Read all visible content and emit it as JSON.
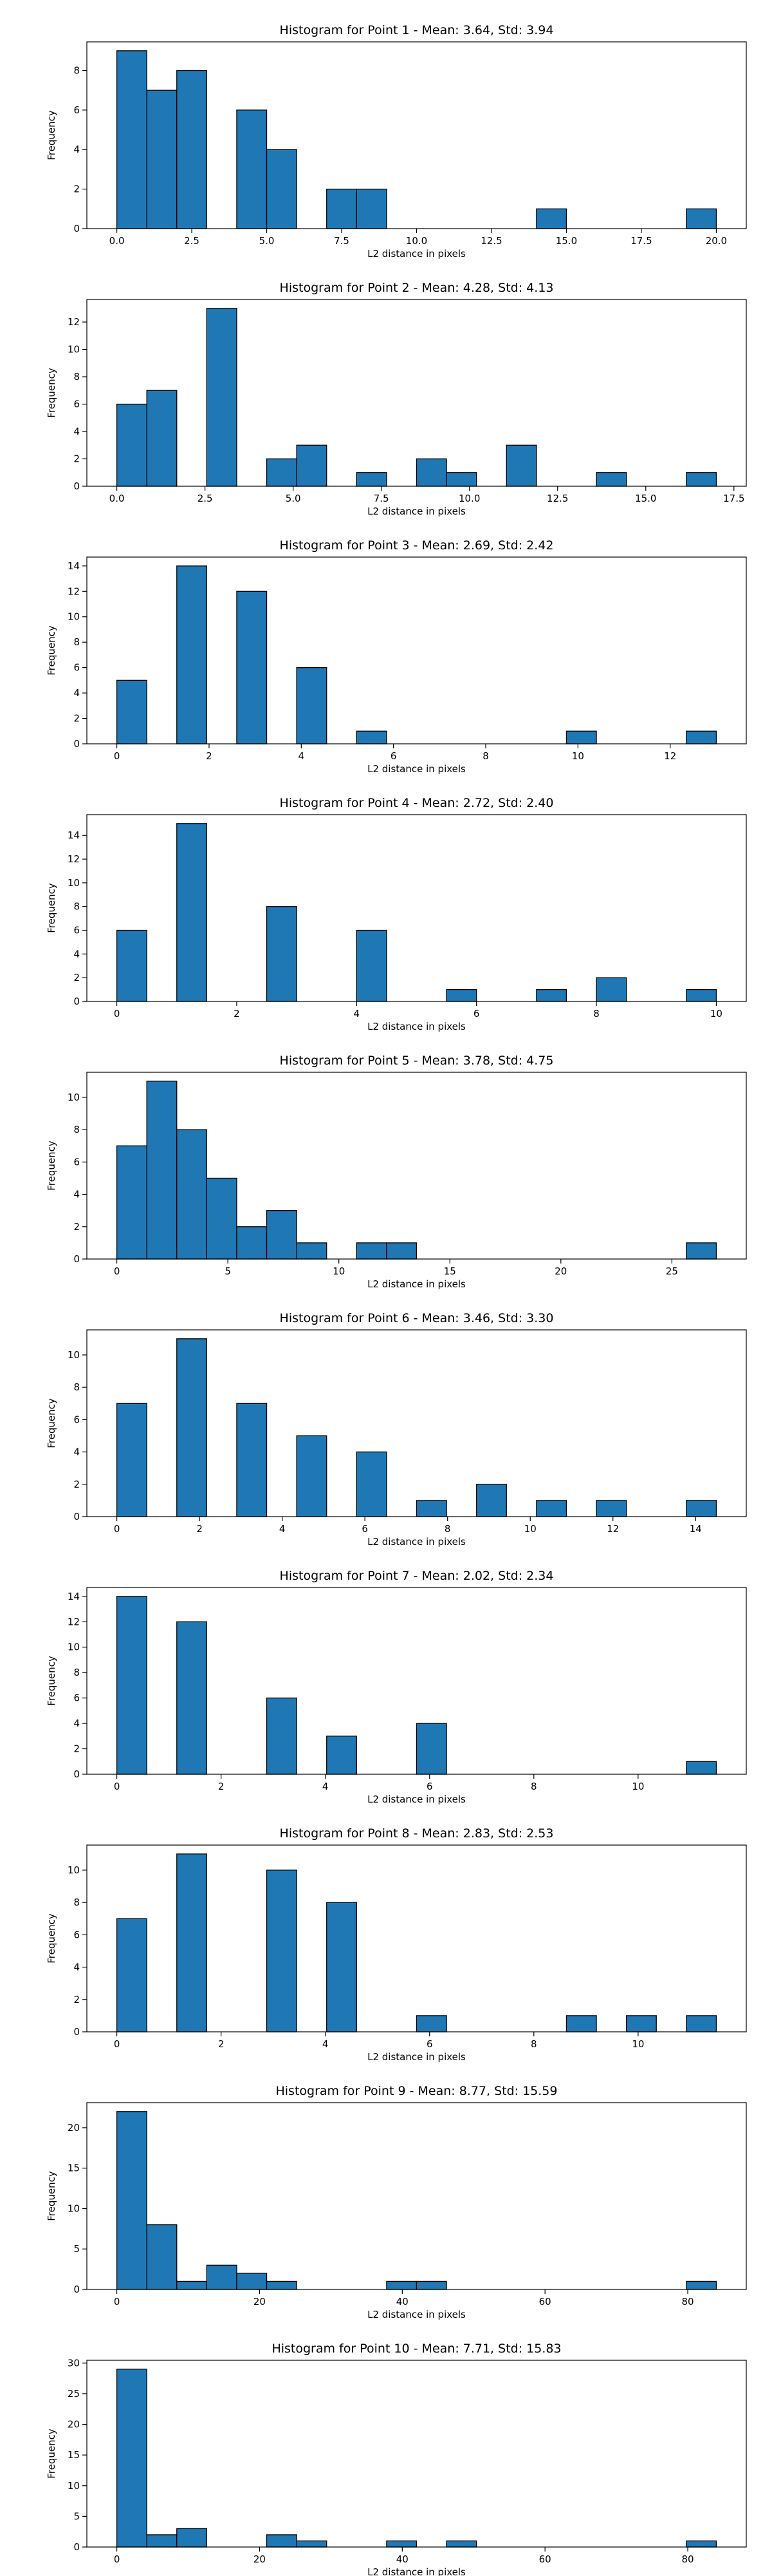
{
  "colors": {
    "bar": "#1f77b4",
    "edge": "#000000"
  },
  "chart_data": [
    {
      "type": "bar",
      "title": "Histogram for Point 1 - Mean: 3.64, Std: 3.94",
      "xlabel": "L2 distance in pixels",
      "ylabel": "Frequency",
      "xlim": [
        -1,
        21
      ],
      "ylim": [
        0,
        9.45
      ],
      "xticks": [
        0,
        2.5,
        5,
        7.5,
        10,
        12.5,
        15,
        17.5,
        20
      ],
      "xtick_labels": [
        "0.0",
        "2.5",
        "5.0",
        "7.5",
        "10.0",
        "12.5",
        "15.0",
        "17.5",
        "20.0"
      ],
      "yticks": [
        0,
        2,
        4,
        6,
        8
      ],
      "bins": [
        0,
        1,
        2,
        3,
        4,
        5,
        6,
        7,
        8,
        9,
        10,
        11,
        12,
        13,
        14,
        15,
        16,
        17,
        18,
        19,
        20
      ],
      "counts": [
        9,
        7,
        8,
        0,
        6,
        4,
        0,
        2,
        2,
        0,
        0,
        0,
        0,
        0,
        1,
        0,
        0,
        0,
        0,
        1
      ]
    },
    {
      "type": "bar",
      "title": "Histogram for Point 2 - Mean: 4.28, Std: 4.13",
      "xlabel": "L2 distance in pixels",
      "ylabel": "Frequency",
      "xlim": [
        -0.85,
        17.85
      ],
      "ylim": [
        0,
        13.65
      ],
      "xticks": [
        0,
        2.5,
        5,
        7.5,
        10,
        12.5,
        15,
        17.5
      ],
      "xtick_labels": [
        "0.0",
        "2.5",
        "5.0",
        "7.5",
        "10.0",
        "12.5",
        "15.0",
        "17.5"
      ],
      "yticks": [
        0,
        2,
        4,
        6,
        8,
        10,
        12
      ],
      "bins": [
        0,
        0.85,
        1.7,
        2.55,
        3.4,
        4.25,
        5.1,
        5.95,
        6.8,
        7.65,
        8.5,
        9.35,
        10.2,
        11.05,
        11.9,
        12.75,
        13.6,
        14.45,
        15.3,
        16.15,
        17
      ],
      "counts": [
        6,
        7,
        0,
        13,
        0,
        2,
        3,
        0,
        1,
        0,
        2,
        1,
        0,
        3,
        0,
        0,
        1,
        0,
        0,
        1
      ]
    },
    {
      "type": "bar",
      "title": "Histogram for Point 3 - Mean: 2.69, Std: 2.42",
      "xlabel": "L2 distance in pixels",
      "ylabel": "Frequency",
      "xlim": [
        -0.65,
        13.65
      ],
      "ylim": [
        0,
        14.7
      ],
      "xticks": [
        0,
        2,
        4,
        6,
        8,
        10,
        12
      ],
      "xtick_labels": [
        "0",
        "2",
        "4",
        "6",
        "8",
        "10",
        "12"
      ],
      "yticks": [
        0,
        2,
        4,
        6,
        8,
        10,
        12,
        14
      ],
      "bins": [
        0,
        0.65,
        1.3,
        1.95,
        2.6,
        3.25,
        3.9,
        4.55,
        5.2,
        5.85,
        6.5,
        7.15,
        7.8,
        8.45,
        9.1,
        9.75,
        10.4,
        11.05,
        11.7,
        12.35,
        13
      ],
      "counts": [
        5,
        0,
        14,
        0,
        12,
        0,
        6,
        0,
        1,
        0,
        0,
        0,
        0,
        0,
        0,
        1,
        0,
        0,
        0,
        1
      ]
    },
    {
      "type": "bar",
      "title": "Histogram for Point 4 - Mean: 2.72, Std: 2.40",
      "xlabel": "L2 distance in pixels",
      "ylabel": "Frequency",
      "xlim": [
        -0.5,
        10.5
      ],
      "ylim": [
        0,
        15.75
      ],
      "xticks": [
        0,
        2,
        4,
        6,
        8,
        10
      ],
      "xtick_labels": [
        "0",
        "2",
        "4",
        "6",
        "8",
        "10"
      ],
      "yticks": [
        0,
        2,
        4,
        6,
        8,
        10,
        12,
        14
      ],
      "bins": [
        0,
        0.5,
        1,
        1.5,
        2,
        2.5,
        3,
        3.5,
        4,
        4.5,
        5,
        5.5,
        6,
        6.5,
        7,
        7.5,
        8,
        8.5,
        9,
        9.5,
        10
      ],
      "counts": [
        6,
        0,
        15,
        0,
        0,
        8,
        0,
        0,
        6,
        0,
        0,
        1,
        0,
        0,
        1,
        0,
        2,
        0,
        0,
        1
      ]
    },
    {
      "type": "bar",
      "title": "Histogram for Point 5 - Mean: 3.78, Std: 4.75",
      "xlabel": "L2 distance in pixels",
      "ylabel": "Frequency",
      "xlim": [
        -1.35,
        28.35
      ],
      "ylim": [
        0,
        11.55
      ],
      "xticks": [
        0,
        5,
        10,
        15,
        20,
        25
      ],
      "xtick_labels": [
        "0",
        "5",
        "10",
        "15",
        "20",
        "25"
      ],
      "yticks": [
        0,
        2,
        4,
        6,
        8,
        10
      ],
      "bins": [
        0,
        1.35,
        2.7,
        4.05,
        5.4,
        6.75,
        8.1,
        9.45,
        10.8,
        12.15,
        13.5,
        14.85,
        16.2,
        17.55,
        18.9,
        20.25,
        21.6,
        22.95,
        24.3,
        25.65,
        27
      ],
      "counts": [
        7,
        11,
        8,
        5,
        2,
        3,
        1,
        0,
        1,
        1,
        0,
        0,
        0,
        0,
        0,
        0,
        0,
        0,
        0,
        1
      ]
    },
    {
      "type": "bar",
      "title": "Histogram for Point 6 - Mean: 3.46, Std: 3.30",
      "xlabel": "L2 distance in pixels",
      "ylabel": "Frequency",
      "xlim": [
        -0.725,
        15.225
      ],
      "ylim": [
        0,
        11.55
      ],
      "xticks": [
        0,
        2,
        4,
        6,
        8,
        10,
        12,
        14
      ],
      "xtick_labels": [
        "0",
        "2",
        "4",
        "6",
        "8",
        "10",
        "12",
        "14"
      ],
      "yticks": [
        0,
        2,
        4,
        6,
        8,
        10
      ],
      "bins": [
        0,
        0.725,
        1.45,
        2.175,
        2.9,
        3.625,
        4.35,
        5.075,
        5.8,
        6.525,
        7.25,
        7.975,
        8.7,
        9.425,
        10.15,
        10.875,
        11.6,
        12.325,
        13.05,
        13.775,
        14.5
      ],
      "counts": [
        7,
        0,
        11,
        0,
        7,
        0,
        5,
        0,
        4,
        0,
        1,
        0,
        2,
        0,
        1,
        0,
        1,
        0,
        0,
        1
      ]
    },
    {
      "type": "bar",
      "title": "Histogram for Point 7 - Mean: 2.02, Std: 2.34",
      "xlabel": "L2 distance in pixels",
      "ylabel": "Frequency",
      "xlim": [
        -0.575,
        12.075
      ],
      "ylim": [
        0,
        14.7
      ],
      "xticks": [
        0,
        2,
        4,
        6,
        8,
        10
      ],
      "xtick_labels": [
        "0",
        "2",
        "4",
        "6",
        "8",
        "10"
      ],
      "yticks": [
        0,
        2,
        4,
        6,
        8,
        10,
        12,
        14
      ],
      "bins": [
        0,
        0.575,
        1.15,
        1.725,
        2.3,
        2.875,
        3.45,
        4.025,
        4.6,
        5.175,
        5.75,
        6.325,
        6.9,
        7.475,
        8.05,
        8.625,
        9.2,
        9.775,
        10.35,
        10.925,
        11.5
      ],
      "counts": [
        14,
        0,
        12,
        0,
        0,
        6,
        0,
        3,
        0,
        0,
        4,
        0,
        0,
        0,
        0,
        0,
        0,
        0,
        0,
        1
      ]
    },
    {
      "type": "bar",
      "title": "Histogram for Point 8 - Mean: 2.83, Std: 2.53",
      "xlabel": "L2 distance in pixels",
      "ylabel": "Frequency",
      "xlim": [
        -0.575,
        12.075
      ],
      "ylim": [
        0,
        11.55
      ],
      "xticks": [
        0,
        2,
        4,
        6,
        8,
        10
      ],
      "xtick_labels": [
        "0",
        "2",
        "4",
        "6",
        "8",
        "10"
      ],
      "yticks": [
        0,
        2,
        4,
        6,
        8,
        10
      ],
      "bins": [
        0,
        0.575,
        1.15,
        1.725,
        2.3,
        2.875,
        3.45,
        4.025,
        4.6,
        5.175,
        5.75,
        6.325,
        6.9,
        7.475,
        8.05,
        8.625,
        9.2,
        9.775,
        10.35,
        10.925,
        11.5
      ],
      "counts": [
        7,
        0,
        11,
        0,
        0,
        10,
        0,
        8,
        0,
        0,
        1,
        0,
        0,
        0,
        0,
        1,
        0,
        1,
        0,
        1
      ]
    },
    {
      "type": "bar",
      "title": "Histogram for Point 9 - Mean: 8.77, Std: 15.59",
      "xlabel": "L2 distance in pixels",
      "ylabel": "Frequency",
      "xlim": [
        -4.2,
        88.2
      ],
      "ylim": [
        0,
        23.1
      ],
      "xticks": [
        0,
        20,
        40,
        60,
        80
      ],
      "xtick_labels": [
        "0",
        "20",
        "40",
        "60",
        "80"
      ],
      "yticks": [
        0,
        5,
        10,
        15,
        20
      ],
      "bins": [
        0,
        4.2,
        8.4,
        12.6,
        16.8,
        21,
        25.2,
        29.4,
        33.6,
        37.8,
        42,
        46.2,
        50.4,
        54.6,
        58.8,
        63,
        67.2,
        71.4,
        75.6,
        79.8,
        84
      ],
      "counts": [
        22,
        8,
        1,
        3,
        2,
        1,
        0,
        0,
        0,
        1,
        1,
        0,
        0,
        0,
        0,
        0,
        0,
        0,
        0,
        1
      ]
    },
    {
      "type": "bar",
      "title": "Histogram for Point 10 - Mean: 7.71, Std: 15.83",
      "xlabel": "L2 distance in pixels",
      "ylabel": "Frequency",
      "xlim": [
        -4.2,
        88.2
      ],
      "ylim": [
        0,
        30.45
      ],
      "xticks": [
        0,
        20,
        40,
        60,
        80
      ],
      "xtick_labels": [
        "0",
        "20",
        "40",
        "60",
        "80"
      ],
      "yticks": [
        0,
        5,
        10,
        15,
        20,
        25,
        30
      ],
      "bins": [
        0,
        4.2,
        8.4,
        12.6,
        16.8,
        21,
        25.2,
        29.4,
        33.6,
        37.8,
        42,
        46.2,
        50.4,
        54.6,
        58.8,
        63,
        67.2,
        71.4,
        75.6,
        79.8,
        84
      ],
      "counts": [
        29,
        2,
        3,
        0,
        0,
        2,
        1,
        0,
        0,
        1,
        0,
        1,
        0,
        0,
        0,
        0,
        0,
        0,
        0,
        1
      ]
    }
  ]
}
